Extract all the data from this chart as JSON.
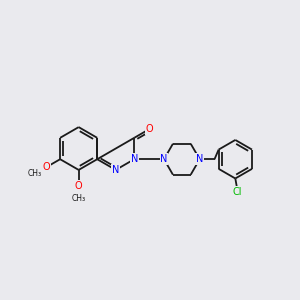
{
  "bg_color": "#eaeaee",
  "bond_color": "#1a1a1a",
  "N_color": "#0000ff",
  "O_color": "#ff0000",
  "Cl_color": "#00bb00",
  "lw": 1.3,
  "figsize": [
    3.0,
    3.0
  ],
  "dpi": 100,
  "xlim": [
    -0.5,
    9.5
  ],
  "ylim": [
    2.0,
    7.5
  ]
}
